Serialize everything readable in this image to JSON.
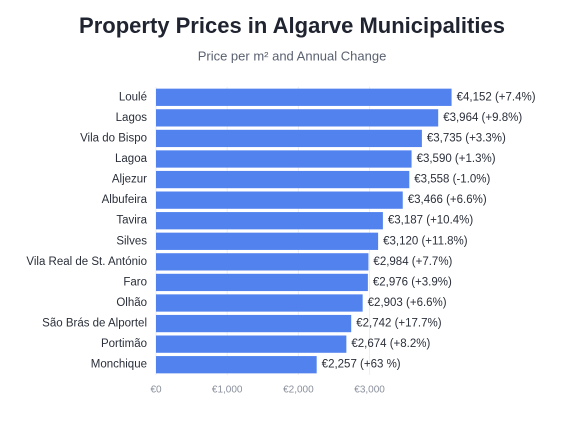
{
  "chart_data": {
    "type": "bar",
    "orientation": "horizontal",
    "title": "Property Prices in Algarve Municipalities",
    "subtitle": "Price per m² and Annual Change",
    "categories": [
      "Loulé",
      "Lagos",
      "Vila do Bispo",
      "Lagoa",
      "Aljezur",
      "Albufeira",
      "Tavira",
      "Silves",
      "Vila Real de St. António",
      "Faro",
      "Olhão",
      "São Brás de Alportel",
      "Portimão",
      "Monchique"
    ],
    "values": [
      4152,
      3964,
      3735,
      3590,
      3558,
      3466,
      3187,
      3120,
      2984,
      2976,
      2903,
      2742,
      2674,
      2257
    ],
    "value_labels": [
      "€4,152 (+7.4%)",
      "€3,964 (+9.8%)",
      "€3,735 (+3.3%)",
      "€3,590 (+1.3%)",
      "€3,558 (-1.0%)",
      "€3,466 (+6.6%)",
      "€3,187 (+10.4%)",
      "€3,120 (+11.8%)",
      "€2,984 (+7.7%)",
      "€2,976 (+3.9%)",
      "€2,903 (+6.6%)",
      "€2,742 (+17.7%)",
      "€2,674 (+8.2%)",
      "€2,257 (+63 %)"
    ],
    "color": "#5282ee",
    "xlim": [
      0,
      4200
    ],
    "xticks": [
      {
        "value": 0,
        "label": "€0"
      },
      {
        "value": 1000,
        "label": "€1,000"
      },
      {
        "value": 2000,
        "label": "€2,000"
      },
      {
        "value": 3000,
        "label": "€3,000"
      }
    ],
    "grid": true
  }
}
